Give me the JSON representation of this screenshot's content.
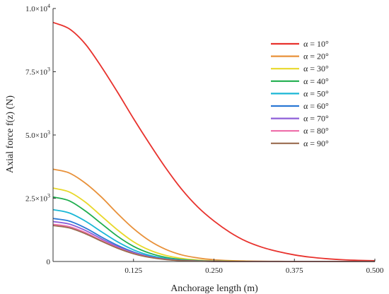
{
  "chart_data": {
    "type": "line",
    "title": "",
    "xlabel": "Anchorage length (m)",
    "ylabel": "Axial force f(z) (N)",
    "xlim": [
      0,
      0.5
    ],
    "ylim": [
      0,
      10000
    ],
    "x_ticks": [
      0.125,
      0.25,
      0.375,
      0.5
    ],
    "x_tick_labels": [
      "0.125",
      "0.250",
      "0.375",
      "0.500"
    ],
    "y_ticks": [
      0,
      2500,
      5000,
      7500,
      10000
    ],
    "y_tick_labels": [
      {
        "mant": "0",
        "exp": ""
      },
      {
        "mant": "2.5×10",
        "exp": "3"
      },
      {
        "mant": "5.0×10",
        "exp": "3"
      },
      {
        "mant": "7.5×10",
        "exp": "3"
      },
      {
        "mant": "1.0×10",
        "exp": "4"
      }
    ],
    "grid": false,
    "legend_position": "top-right",
    "x": [
      0,
      0.025,
      0.05,
      0.075,
      0.1,
      0.125,
      0.15,
      0.175,
      0.2,
      0.225,
      0.25,
      0.275,
      0.3,
      0.325,
      0.35,
      0.375,
      0.4,
      0.425,
      0.45,
      0.475,
      0.5
    ],
    "series": [
      {
        "name": "α = 10°",
        "color": "#e8322d",
        "values": [
          9450,
          9200,
          8600,
          7700,
          6700,
          5650,
          4650,
          3700,
          2850,
          2150,
          1600,
          1150,
          800,
          560,
          390,
          260,
          170,
          110,
          70,
          45,
          30
        ]
      },
      {
        "name": "α = 20°",
        "color": "#e8913a",
        "values": [
          3650,
          3500,
          3100,
          2550,
          1900,
          1300,
          820,
          480,
          260,
          140,
          70,
          35,
          18,
          9,
          5,
          3,
          2,
          1,
          1,
          0,
          0
        ]
      },
      {
        "name": "α = 30°",
        "color": "#e8d82a",
        "values": [
          2900,
          2750,
          2350,
          1800,
          1250,
          780,
          450,
          240,
          120,
          55,
          25,
          11,
          5,
          2,
          1,
          0,
          0,
          0,
          0,
          0,
          0
        ]
      },
      {
        "name": "α = 40°",
        "color": "#1fae4e",
        "values": [
          2550,
          2400,
          2000,
          1500,
          1000,
          600,
          330,
          165,
          78,
          35,
          15,
          6,
          2,
          1,
          0,
          0,
          0,
          0,
          0,
          0,
          0
        ]
      },
      {
        "name": "α = 50°",
        "color": "#1ab7d6",
        "values": [
          2050,
          1920,
          1600,
          1180,
          780,
          460,
          245,
          120,
          55,
          24,
          10,
          4,
          2,
          1,
          0,
          0,
          0,
          0,
          0,
          0,
          0
        ]
      },
      {
        "name": "α = 60°",
        "color": "#2a78d4",
        "values": [
          1700,
          1600,
          1330,
          970,
          640,
          375,
          200,
          96,
          43,
          18,
          7,
          3,
          1,
          0,
          0,
          0,
          0,
          0,
          0,
          0,
          0
        ]
      },
      {
        "name": "α = 70°",
        "color": "#8e5fd8",
        "values": [
          1580,
          1480,
          1230,
          900,
          590,
          345,
          183,
          88,
          39,
          16,
          6,
          2,
          1,
          0,
          0,
          0,
          0,
          0,
          0,
          0,
          0
        ]
      },
      {
        "name": "α = 80°",
        "color": "#ee6aa7",
        "values": [
          1470,
          1380,
          1145,
          835,
          548,
          320,
          170,
          82,
          36,
          15,
          6,
          2,
          1,
          0,
          0,
          0,
          0,
          0,
          0,
          0,
          0
        ]
      },
      {
        "name": "α = 90°",
        "color": "#9a6b4f",
        "values": [
          1420,
          1330,
          1100,
          805,
          528,
          308,
          163,
          79,
          35,
          14,
          6,
          2,
          1,
          0,
          0,
          0,
          0,
          0,
          0,
          0,
          0
        ]
      }
    ]
  }
}
